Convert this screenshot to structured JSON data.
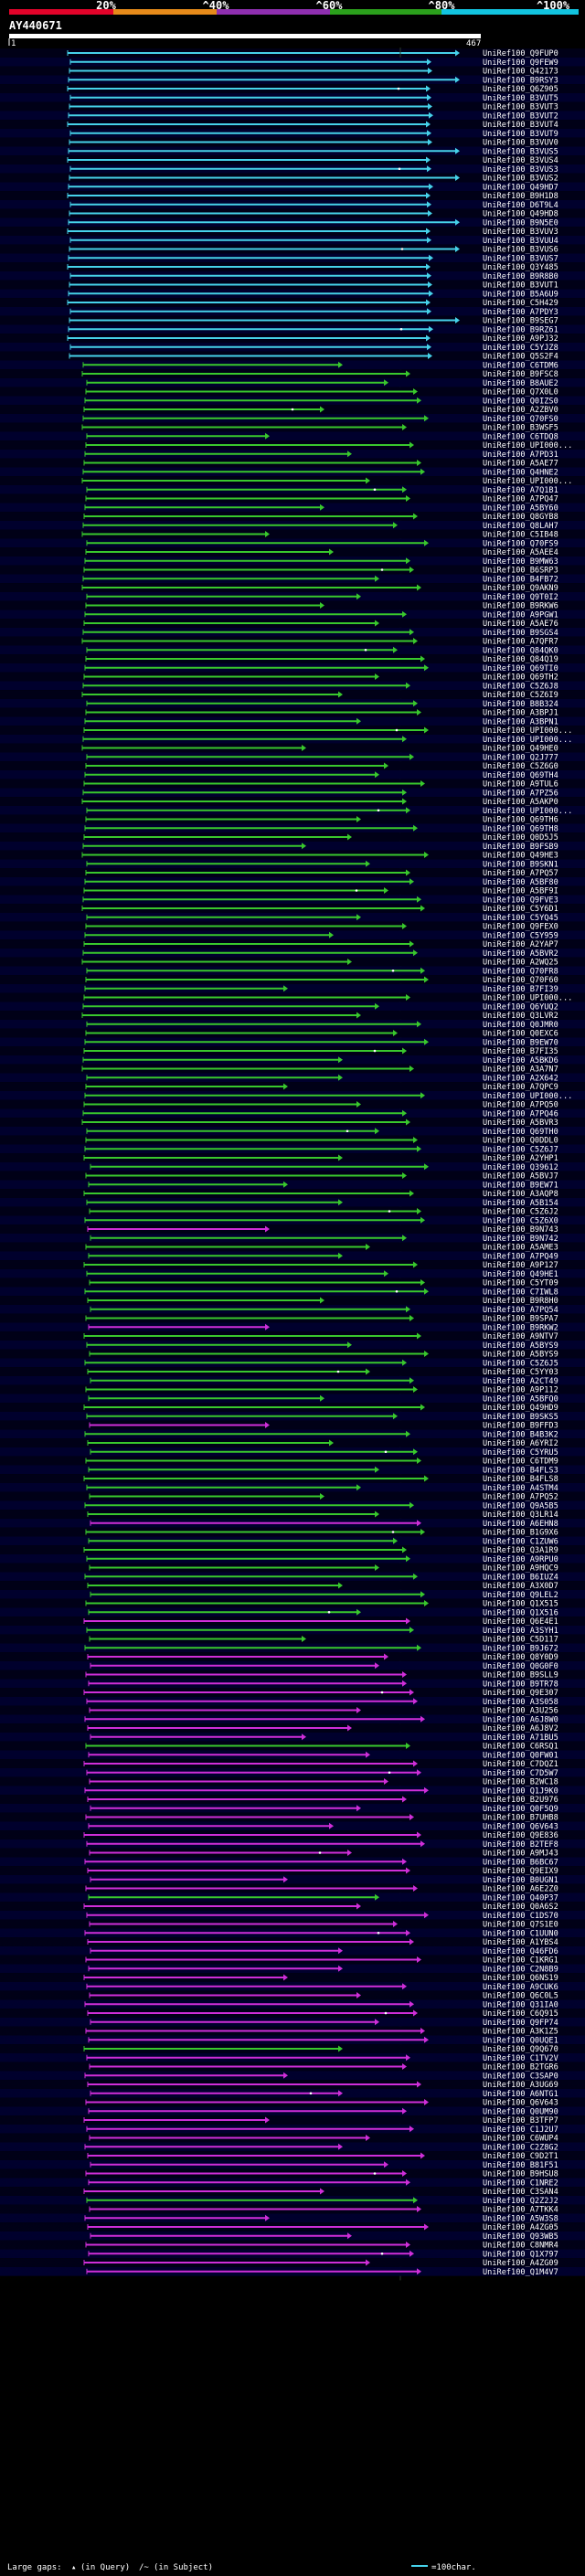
{
  "query_name": "AY440671",
  "colors": {
    "background": "#000000",
    "band_a": "#000017",
    "band_b": "#00002d",
    "scale_red": "#e3032a",
    "scale_orange": "#e68a1a",
    "scale_purple": "#8f2fb0",
    "scale_green": "#2ba01c",
    "scale_cyan": "#12c4e0",
    "hit_cyan": "#46d2ea",
    "hit_green": "#39c82d",
    "hit_magenta": "#cf2ed9",
    "gridline": "#2a3a2a"
  },
  "chart_data": {
    "type": "alignment-overview",
    "identity_scale": [
      "20%",
      "^40%",
      "^60%",
      "^80%",
      "^100%"
    ],
    "query_ruler": {
      "start": "1",
      "end": "467"
    },
    "legend": {
      "large_gaps_prefix": "Large gaps:",
      "query_marker": "▴",
      "in_query": "(in Query)",
      "subject_marker": "/~",
      "in_subject": "(in Subject)",
      "scale_text": "=100char."
    },
    "labels": [
      "UniRef100_Q9FUP0",
      "UniRef100_Q9FEW9",
      "UniRef100_Q42173",
      "UniRef100_B9RSY3",
      "UniRef100_Q6Z905",
      "UniRef100_B3VUT5",
      "UniRef100_B3VUT3",
      "UniRef100_B3VUT2",
      "UniRef100_B3VUT4",
      "UniRef100_B3VUT9",
      "UniRef100_B3VUV0",
      "UniRef100_B3VUS5",
      "UniRef100_B3VUS4",
      "UniRef100_B3VUS3",
      "UniRef100_B3VUS2",
      "UniRef100_Q49HD7",
      "UniRef100_B9H1D8",
      "UniRef100_D6T9L4",
      "UniRef100_Q49HD8",
      "UniRef100_B9N5E0",
      "UniRef100_B3VUV3",
      "UniRef100_B3VUU4",
      "UniRef100_B3VUS6",
      "UniRef100_B3VUS7",
      "UniRef100_Q3Y485",
      "UniRef100_B9R8B0",
      "UniRef100_B3VUT1",
      "UniRef100_B5A6U9",
      "UniRef100_C5H429",
      "UniRef100_A7PDY3",
      "UniRef100_B9SEG7",
      "UniRef100_B9RZ61",
      "UniRef100_A9PJ32",
      "UniRef100_C5YJZ8",
      "UniRef100_Q5S2F4",
      "UniRef100_C6TDM6",
      "UniRef100_B9FSC8",
      "UniRef100_B8AUE2",
      "UniRef100_Q7X0L0",
      "UniRef100_Q0IZS0",
      "UniRef100_A2ZBV0",
      "UniRef100_Q70FS0",
      "UniRef100_B3WSF5",
      "UniRef100_C6TDQ8",
      "UniRef100_UPI000...",
      "UniRef100_A7PD31",
      "UniRef100_A5AE77",
      "UniRef100_Q4HNE2",
      "UniRef100_UPI000...",
      "UniRef100_A7Q1B1",
      "UniRef100_A7PQ47",
      "UniRef100_A5BY60",
      "UniRef100_Q8GYB8",
      "UniRef100_Q8LAH7",
      "UniRef100_C5IB48",
      "UniRef100_Q70FS9",
      "UniRef100_A5AEE4",
      "UniRef100_B9MW63",
      "UniRef100_B6SRP3",
      "UniRef100_B4FB72",
      "UniRef100_Q9AKN9",
      "UniRef100_Q9T0I2",
      "UniRef100_B9RKW6",
      "UniRef100_A9PGW1",
      "UniRef100_A5AE76",
      "UniRef100_B9SGS4",
      "UniRef100_A7QFR7",
      "UniRef100_Q84QK0",
      "UniRef100_Q84Q19",
      "UniRef100_Q69TI0",
      "UniRef100_Q69TH2",
      "UniRef100_C5Z6J8",
      "UniRef100_C5Z6I9",
      "UniRef100_B8B324",
      "UniRef100_A3BPJ1",
      "UniRef100_A3BPN1",
      "UniRef100_UPI000...",
      "UniRef100_UPI000...",
      "UniRef100_Q49HE0",
      "UniRef100_Q2J777",
      "UniRef100_C5Z6G0",
      "UniRef100_Q69TH4",
      "UniRef100_A9TUL6",
      "UniRef100_A7PZ56",
      "UniRef100_A5AKP0",
      "UniRef100_UPI000...",
      "UniRef100_Q69TH6",
      "UniRef100_Q69TH8",
      "UniRef100_Q0D5J5",
      "UniRef100_B9FSB9",
      "UniRef100_Q49HE3",
      "UniRef100_B9SKN1",
      "UniRef100_A7PQ57",
      "UniRef100_A5BF80",
      "UniRef100_A5BF9I",
      "UniRef100_Q9FVE3",
      "UniRef100_C5Y6D1",
      "UniRef100_C5YQ45",
      "UniRef100_Q9FEX0",
      "UniRef100_C5Y959",
      "UniRef100_A2YAP7",
      "UniRef100_A5BVR2",
      "UniRef100_A2WQ25",
      "UniRef100_Q70FR8",
      "UniRef100_Q70F60",
      "UniRef100_B7FI39",
      "UniRef100_UPI000...",
      "UniRef100_Q6YUQ2",
      "UniRef100_Q3LVR2",
      "UniRef100_Q0JMR0",
      "UniRef100_Q0EXC6",
      "UniRef100_B9EW70",
      "UniRef100_B7FI35",
      "UniRef100_A5BKD6",
      "UniRef100_A3A7N7",
      "UniRef100_A2X642",
      "UniRef100_A7QPC9",
      "UniRef100_UPI000...",
      "UniRef100_A7PQ50",
      "UniRef100_A7PQ46",
      "UniRef100_A5BVR3",
      "UniRef100_Q69TH0",
      "UniRef100_Q0DDL0",
      "UniRef100_C5Z6J7",
      "UniRef100_A2YHP1",
      "UniRef100_Q39612",
      "UniRef100_A5BVJ7",
      "UniRef100_B9EW71",
      "UniRef100_A3AQP8",
      "UniRef100_A5B154",
      "UniRef100_C5Z6J2",
      "UniRef100_C5Z6X0",
      "UniRef100_B9N743",
      "UniRef100_B9N742",
      "UniRef100_A5AME3",
      "UniRef100_A7PQ49",
      "UniRef100_A9P127",
      "UniRef100_Q49HE1",
      "UniRef100_C5YT09",
      "UniRef100_C7IWL8",
      "UniRef100_B9R8H0",
      "UniRef100_A7PQ54",
      "UniRef100_B9SPA7",
      "UniRef100_B9RKW2",
      "UniRef100_A9NTV7",
      "UniRef100_A5BYS9",
      "UniRef100_A5BYS9",
      "UniRef100_C5Z6J5",
      "UniRef100_C5YY03",
      "UniRef100_A2CT49",
      "UniRef100_A9P112",
      "UniRef100_A5BFQ0",
      "UniRef100_Q49HD9",
      "UniRef100_B9SKS5",
      "UniRef100_B9FFD3",
      "UniRef100_B4B3K2",
      "UniRef100_A6YRI2",
      "UniRef100_C5YRU5",
      "UniRef100_C6TDM9",
      "UniRef100_B4FLS3",
      "UniRef100_B4FLS8",
      "UniRef100_A4STM4",
      "UniRef100_A7PQ52",
      "UniRef100_Q9A5B5",
      "UniRef100_Q3LR14",
      "UniRef100_A6EHN8",
      "UniRef100_B1G9X6",
      "UniRef100_C1ZUW6",
      "UniRef100_Q3A1R9",
      "UniRef100_A9RPU0",
      "UniRef100_A9HQC9",
      "UniRef100_B6IUZ4",
      "UniRef100_A3X0D7",
      "UniRef100_Q9LEL2",
      "UniRef100_Q1X515",
      "UniRef100_Q1X516",
      "UniRef100_Q6E4E1",
      "UniRef100_A3SYH1",
      "UniRef100_C5D117",
      "UniRef100_B9J672",
      "UniRef100_Q8Y0D9",
      "UniRef100_Q0G0F0",
      "UniRef100_B9SLL9",
      "UniRef100_B9TR78",
      "UniRef100_Q9E307",
      "UniRef100_A3S058",
      "UniRef100_A3U256",
      "UniRef100_A6J8W0",
      "UniRef100_A6J8V2",
      "UniRef100_A71BU5",
      "UniRef100_C6RSQ1",
      "UniRef100_Q0FW01",
      "UniRef100_C7DQZ1",
      "UniRef100_C7D5W7",
      "UniRef100_B2WC18",
      "UniRef100_Q1J9K0",
      "UniRef100_B2U976",
      "UniRef100_Q0F5Q9",
      "UniRef100_B7UHB8",
      "UniRef100_Q6V643",
      "UniRef100_Q9E836",
      "UniRef100_B2TEF8",
      "UniRef100_A9MJ43",
      "UniRef100_B6BC67",
      "UniRef100_Q9EIX9",
      "UniRef100_B0UGN1",
      "UniRef100_A6E2Z0",
      "UniRef100_Q40P37",
      "UniRef100_Q0A6S2",
      "UniRef100_C1DS70",
      "UniRef100_Q7S1E0",
      "UniRef100_C1UUN0",
      "UniRef100_A1YBS4",
      "UniRef100_Q46FD6",
      "UniRef100_C1KRG1",
      "UniRef100_C2N8B9",
      "UniRef100_Q6NS19",
      "UniRef100_A9CUK6",
      "UniRef100_Q6C0L5",
      "UniRef100_Q31IA0",
      "UniRef100_C6Q915",
      "UniRef100_Q9FP74",
      "UniRef100_A3K1Z5",
      "UniRef100_Q0UQE1",
      "UniRef100_Q9Q670",
      "UniRef100_C1TV2V",
      "UniRef100_B2TGR6",
      "UniRef100_C3SAP0",
      "UniRef100_A3UG69",
      "UniRef100_A6NTG1",
      "UniRef100_Q6V643",
      "UniRef100_Q0UM90",
      "UniRef100_B3TFP7",
      "UniRef100_C1J2U7",
      "UniRef100_C6WUP4",
      "UniRef100_C2Z8G2",
      "UniRef100_C9D2T1",
      "UniRef100_B81F51",
      "UniRef100_B9HSU8",
      "UniRef100_C1NRE2",
      "UniRef100_C3SAN4",
      "UniRef100_Q2Z2J2",
      "UniRef100_A7TKK4",
      "UniRef100_A5W3S8",
      "UniRef100_A4ZG05",
      "UniRef100_Q93WB5",
      "UniRef100_C8NMR4",
      "UniRef100_Q1X797",
      "UniRef100_A4ZG09",
      "UniRef100_Q1M4V7"
    ]
  }
}
